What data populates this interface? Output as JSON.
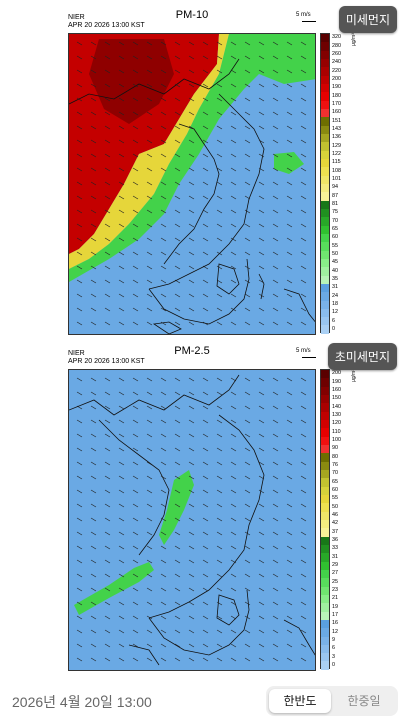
{
  "badges": {
    "pm10": "미세먼지",
    "pm25": "초미세먼지"
  },
  "pm10": {
    "title": "PM-10",
    "org": "NIER",
    "timestamp": "APR 20 2026 13:00 KST",
    "wind_label": "5 m/s",
    "unit": "μg/m³",
    "scale": [
      "320",
      "280",
      "260",
      "240",
      "220",
      "200",
      "190",
      "180",
      "170",
      "160",
      "151",
      "143",
      "136",
      "129",
      "122",
      "115",
      "108",
      "101",
      "94",
      "87",
      "81",
      "75",
      "70",
      "65",
      "60",
      "55",
      "50",
      "45",
      "40",
      "35",
      "31",
      "24",
      "18",
      "12",
      "6",
      "0"
    ],
    "colors": {
      "red": "#c40000",
      "dark_red": "#7a0000",
      "yellow": "#e6d63a",
      "green": "#43d24a",
      "blue": "#6aa9e4"
    }
  },
  "pm25": {
    "title": "PM-2.5",
    "org": "NIER",
    "timestamp": "APR 20 2026 13:00 KST",
    "wind_label": "5 m/s",
    "unit": "μg/m³",
    "scale": [
      "200",
      "190",
      "160",
      "150",
      "140",
      "130",
      "120",
      "110",
      "100",
      "90",
      "80",
      "76",
      "70",
      "65",
      "60",
      "55",
      "50",
      "46",
      "42",
      "37",
      "36",
      "33",
      "31",
      "29",
      "27",
      "25",
      "23",
      "21",
      "19",
      "17",
      "16",
      "12",
      "9",
      "6",
      "3",
      "0"
    ],
    "colors": {
      "blue": "#6aa9e4",
      "green": "#43d24a"
    }
  },
  "footer": {
    "date": "2026년 4월 20일 13:00",
    "options": [
      "한반도",
      "한중일"
    ],
    "selected": "한반도"
  }
}
